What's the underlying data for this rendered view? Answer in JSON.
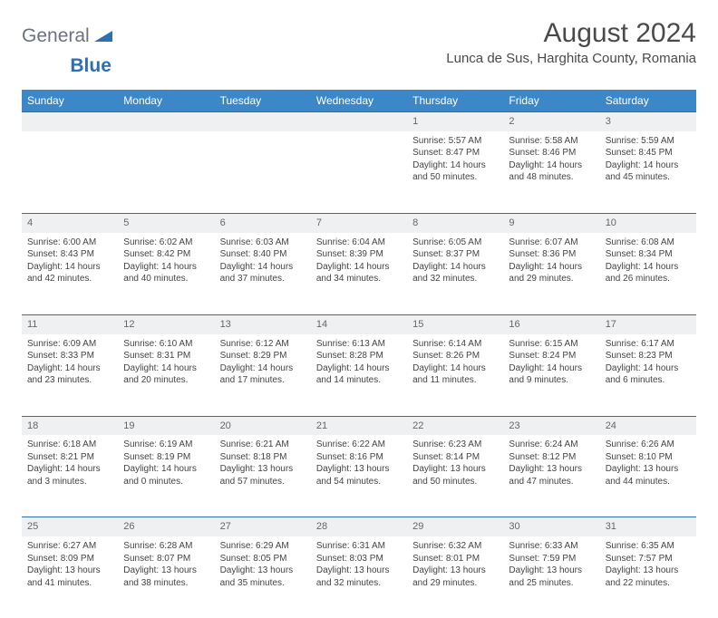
{
  "brand": {
    "part1": "General",
    "part2": "Blue"
  },
  "title": "August 2024",
  "location": "Lunca de Sus, Harghita County, Romania",
  "dayHeaders": [
    "Sunday",
    "Monday",
    "Tuesday",
    "Wednesday",
    "Thursday",
    "Friday",
    "Saturday"
  ],
  "colors": {
    "headerBg": "#3b87c8",
    "headerText": "#ffffff",
    "dayNumBg": "#eef0f2",
    "ruleBlue": "#2f6fb0",
    "bodyText": "#444444",
    "titleText": "#4a4a4a",
    "logoGray": "#6b7280",
    "logoBlue": "#2f6fb0",
    "pageBg": "#ffffff"
  },
  "typography": {
    "title_fontsize": 30,
    "location_fontsize": 15,
    "header_fontsize": 12,
    "daynum_fontsize": 11,
    "cell_fontsize": 10
  },
  "weeks": [
    [
      null,
      null,
      null,
      null,
      {
        "n": "1",
        "sr": "Sunrise: 5:57 AM",
        "ss": "Sunset: 8:47 PM",
        "d1": "Daylight: 14 hours",
        "d2": "and 50 minutes."
      },
      {
        "n": "2",
        "sr": "Sunrise: 5:58 AM",
        "ss": "Sunset: 8:46 PM",
        "d1": "Daylight: 14 hours",
        "d2": "and 48 minutes."
      },
      {
        "n": "3",
        "sr": "Sunrise: 5:59 AM",
        "ss": "Sunset: 8:45 PM",
        "d1": "Daylight: 14 hours",
        "d2": "and 45 minutes."
      }
    ],
    [
      {
        "n": "4",
        "sr": "Sunrise: 6:00 AM",
        "ss": "Sunset: 8:43 PM",
        "d1": "Daylight: 14 hours",
        "d2": "and 42 minutes."
      },
      {
        "n": "5",
        "sr": "Sunrise: 6:02 AM",
        "ss": "Sunset: 8:42 PM",
        "d1": "Daylight: 14 hours",
        "d2": "and 40 minutes."
      },
      {
        "n": "6",
        "sr": "Sunrise: 6:03 AM",
        "ss": "Sunset: 8:40 PM",
        "d1": "Daylight: 14 hours",
        "d2": "and 37 minutes."
      },
      {
        "n": "7",
        "sr": "Sunrise: 6:04 AM",
        "ss": "Sunset: 8:39 PM",
        "d1": "Daylight: 14 hours",
        "d2": "and 34 minutes."
      },
      {
        "n": "8",
        "sr": "Sunrise: 6:05 AM",
        "ss": "Sunset: 8:37 PM",
        "d1": "Daylight: 14 hours",
        "d2": "and 32 minutes."
      },
      {
        "n": "9",
        "sr": "Sunrise: 6:07 AM",
        "ss": "Sunset: 8:36 PM",
        "d1": "Daylight: 14 hours",
        "d2": "and 29 minutes."
      },
      {
        "n": "10",
        "sr": "Sunrise: 6:08 AM",
        "ss": "Sunset: 8:34 PM",
        "d1": "Daylight: 14 hours",
        "d2": "and 26 minutes."
      }
    ],
    [
      {
        "n": "11",
        "sr": "Sunrise: 6:09 AM",
        "ss": "Sunset: 8:33 PM",
        "d1": "Daylight: 14 hours",
        "d2": "and 23 minutes."
      },
      {
        "n": "12",
        "sr": "Sunrise: 6:10 AM",
        "ss": "Sunset: 8:31 PM",
        "d1": "Daylight: 14 hours",
        "d2": "and 20 minutes."
      },
      {
        "n": "13",
        "sr": "Sunrise: 6:12 AM",
        "ss": "Sunset: 8:29 PM",
        "d1": "Daylight: 14 hours",
        "d2": "and 17 minutes."
      },
      {
        "n": "14",
        "sr": "Sunrise: 6:13 AM",
        "ss": "Sunset: 8:28 PM",
        "d1": "Daylight: 14 hours",
        "d2": "and 14 minutes."
      },
      {
        "n": "15",
        "sr": "Sunrise: 6:14 AM",
        "ss": "Sunset: 8:26 PM",
        "d1": "Daylight: 14 hours",
        "d2": "and 11 minutes."
      },
      {
        "n": "16",
        "sr": "Sunrise: 6:15 AM",
        "ss": "Sunset: 8:24 PM",
        "d1": "Daylight: 14 hours",
        "d2": "and 9 minutes."
      },
      {
        "n": "17",
        "sr": "Sunrise: 6:17 AM",
        "ss": "Sunset: 8:23 PM",
        "d1": "Daylight: 14 hours",
        "d2": "and 6 minutes."
      }
    ],
    [
      {
        "n": "18",
        "sr": "Sunrise: 6:18 AM",
        "ss": "Sunset: 8:21 PM",
        "d1": "Daylight: 14 hours",
        "d2": "and 3 minutes."
      },
      {
        "n": "19",
        "sr": "Sunrise: 6:19 AM",
        "ss": "Sunset: 8:19 PM",
        "d1": "Daylight: 14 hours",
        "d2": "and 0 minutes."
      },
      {
        "n": "20",
        "sr": "Sunrise: 6:21 AM",
        "ss": "Sunset: 8:18 PM",
        "d1": "Daylight: 13 hours",
        "d2": "and 57 minutes."
      },
      {
        "n": "21",
        "sr": "Sunrise: 6:22 AM",
        "ss": "Sunset: 8:16 PM",
        "d1": "Daylight: 13 hours",
        "d2": "and 54 minutes."
      },
      {
        "n": "22",
        "sr": "Sunrise: 6:23 AM",
        "ss": "Sunset: 8:14 PM",
        "d1": "Daylight: 13 hours",
        "d2": "and 50 minutes."
      },
      {
        "n": "23",
        "sr": "Sunrise: 6:24 AM",
        "ss": "Sunset: 8:12 PM",
        "d1": "Daylight: 13 hours",
        "d2": "and 47 minutes."
      },
      {
        "n": "24",
        "sr": "Sunrise: 6:26 AM",
        "ss": "Sunset: 8:10 PM",
        "d1": "Daylight: 13 hours",
        "d2": "and 44 minutes."
      }
    ],
    [
      {
        "n": "25",
        "sr": "Sunrise: 6:27 AM",
        "ss": "Sunset: 8:09 PM",
        "d1": "Daylight: 13 hours",
        "d2": "and 41 minutes."
      },
      {
        "n": "26",
        "sr": "Sunrise: 6:28 AM",
        "ss": "Sunset: 8:07 PM",
        "d1": "Daylight: 13 hours",
        "d2": "and 38 minutes."
      },
      {
        "n": "27",
        "sr": "Sunrise: 6:29 AM",
        "ss": "Sunset: 8:05 PM",
        "d1": "Daylight: 13 hours",
        "d2": "and 35 minutes."
      },
      {
        "n": "28",
        "sr": "Sunrise: 6:31 AM",
        "ss": "Sunset: 8:03 PM",
        "d1": "Daylight: 13 hours",
        "d2": "and 32 minutes."
      },
      {
        "n": "29",
        "sr": "Sunrise: 6:32 AM",
        "ss": "Sunset: 8:01 PM",
        "d1": "Daylight: 13 hours",
        "d2": "and 29 minutes."
      },
      {
        "n": "30",
        "sr": "Sunrise: 6:33 AM",
        "ss": "Sunset: 7:59 PM",
        "d1": "Daylight: 13 hours",
        "d2": "and 25 minutes."
      },
      {
        "n": "31",
        "sr": "Sunrise: 6:35 AM",
        "ss": "Sunset: 7:57 PM",
        "d1": "Daylight: 13 hours",
        "d2": "and 22 minutes."
      }
    ]
  ]
}
